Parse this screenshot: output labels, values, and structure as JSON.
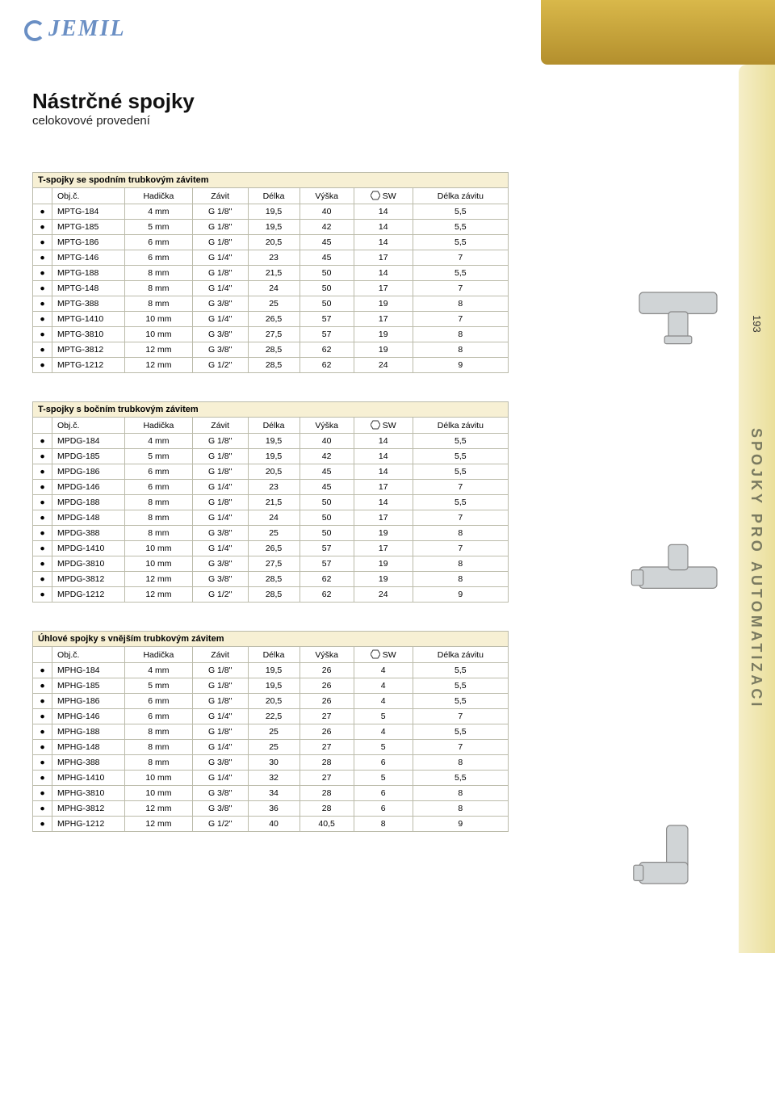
{
  "brand": "JEMIL",
  "page_number": "193",
  "section_label": "SPOJKY PRO AUTOMATIZACI",
  "heading": "Nástrčné spojky",
  "subheading": "celokovové provedení",
  "columns": [
    "Obj.č.",
    "Hadička",
    "Závit",
    "Délka",
    "Výška",
    "SW",
    "Délka závitu"
  ],
  "tables": [
    {
      "title": "T-spojky se spodním trubkovým závitem",
      "rows": [
        [
          "MPTG-184",
          "4 mm",
          "G 1/8\"",
          "19,5",
          "40",
          "14",
          "5,5"
        ],
        [
          "MPTG-185",
          "5 mm",
          "G 1/8\"",
          "19,5",
          "42",
          "14",
          "5,5"
        ],
        [
          "MPTG-186",
          "6 mm",
          "G 1/8\"",
          "20,5",
          "45",
          "14",
          "5,5"
        ],
        [
          "MPTG-146",
          "6 mm",
          "G 1/4\"",
          "23",
          "45",
          "17",
          "7"
        ],
        [
          "MPTG-188",
          "8 mm",
          "G 1/8\"",
          "21,5",
          "50",
          "14",
          "5,5"
        ],
        [
          "MPTG-148",
          "8 mm",
          "G 1/4\"",
          "24",
          "50",
          "17",
          "7"
        ],
        [
          "MPTG-388",
          "8 mm",
          "G 3/8\"",
          "25",
          "50",
          "19",
          "8"
        ],
        [
          "MPTG-1410",
          "10 mm",
          "G 1/4\"",
          "26,5",
          "57",
          "17",
          "7"
        ],
        [
          "MPTG-3810",
          "10 mm",
          "G 3/8\"",
          "27,5",
          "57",
          "19",
          "8"
        ],
        [
          "MPTG-3812",
          "12 mm",
          "G 3/8\"",
          "28,5",
          "62",
          "19",
          "8"
        ],
        [
          "MPTG-1212",
          "12 mm",
          "G 1/2\"",
          "28,5",
          "62",
          "24",
          "9"
        ]
      ]
    },
    {
      "title": "T-spojky s bočním trubkovým závitem",
      "rows": [
        [
          "MPDG-184",
          "4 mm",
          "G 1/8\"",
          "19,5",
          "40",
          "14",
          "5,5"
        ],
        [
          "MPDG-185",
          "5 mm",
          "G 1/8\"",
          "19,5",
          "42",
          "14",
          "5,5"
        ],
        [
          "MPDG-186",
          "6 mm",
          "G 1/8\"",
          "20,5",
          "45",
          "14",
          "5,5"
        ],
        [
          "MPDG-146",
          "6 mm",
          "G 1/4\"",
          "23",
          "45",
          "17",
          "7"
        ],
        [
          "MPDG-188",
          "8 mm",
          "G 1/8\"",
          "21,5",
          "50",
          "14",
          "5,5"
        ],
        [
          "MPDG-148",
          "8 mm",
          "G 1/4\"",
          "24",
          "50",
          "17",
          "7"
        ],
        [
          "MPDG-388",
          "8 mm",
          "G 3/8\"",
          "25",
          "50",
          "19",
          "8"
        ],
        [
          "MPDG-1410",
          "10 mm",
          "G 1/4\"",
          "26,5",
          "57",
          "17",
          "7"
        ],
        [
          "MPDG-3810",
          "10 mm",
          "G 3/8\"",
          "27,5",
          "57",
          "19",
          "8"
        ],
        [
          "MPDG-3812",
          "12 mm",
          "G 3/8\"",
          "28,5",
          "62",
          "19",
          "8"
        ],
        [
          "MPDG-1212",
          "12 mm",
          "G 1/2\"",
          "28,5",
          "62",
          "24",
          "9"
        ]
      ]
    },
    {
      "title": "Úhlové spojky s vnějším trubkovým závitem",
      "rows": [
        [
          "MPHG-184",
          "4 mm",
          "G 1/8\"",
          "19,5",
          "26",
          "4",
          "5,5"
        ],
        [
          "MPHG-185",
          "5 mm",
          "G 1/8\"",
          "19,5",
          "26",
          "4",
          "5,5"
        ],
        [
          "MPHG-186",
          "6 mm",
          "G 1/8\"",
          "20,5",
          "26",
          "4",
          "5,5"
        ],
        [
          "MPHG-146",
          "6 mm",
          "G 1/4\"",
          "22,5",
          "27",
          "5",
          "7"
        ],
        [
          "MPHG-188",
          "8 mm",
          "G 1/8\"",
          "25",
          "26",
          "4",
          "5,5"
        ],
        [
          "MPHG-148",
          "8 mm",
          "G 1/4\"",
          "25",
          "27",
          "5",
          "7"
        ],
        [
          "MPHG-388",
          "8 mm",
          "G 3/8\"",
          "30",
          "28",
          "6",
          "8"
        ],
        [
          "MPHG-1410",
          "10 mm",
          "G 1/4\"",
          "32",
          "27",
          "5",
          "5,5"
        ],
        [
          "MPHG-3810",
          "10 mm",
          "G 3/8\"",
          "34",
          "28",
          "6",
          "8"
        ],
        [
          "MPHG-3812",
          "12 mm",
          "G 3/8\"",
          "36",
          "28",
          "6",
          "8"
        ],
        [
          "MPHG-1212",
          "12 mm",
          "G 1/2\"",
          "40",
          "40,5",
          "8",
          "9"
        ]
      ]
    }
  ]
}
